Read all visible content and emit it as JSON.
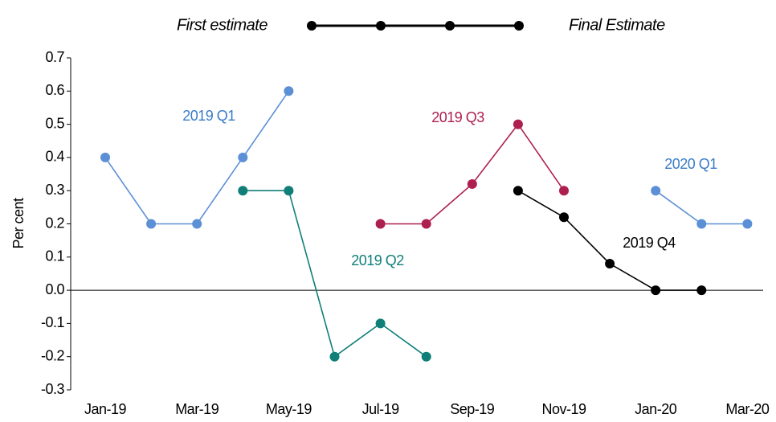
{
  "chart_data": {
    "type": "line",
    "legend": {
      "left_label": "First estimate",
      "right_label": "Final Estimate"
    },
    "ylabel": "Per cent",
    "categories": [
      "Jan-19",
      null,
      "Mar-19",
      null,
      "May-19",
      null,
      "Jul-19",
      null,
      "Sep-19",
      null,
      "Nov-19",
      null,
      "Jan-20",
      null,
      "Mar-20"
    ],
    "ylim": [
      -0.3,
      0.7
    ],
    "yticks": [
      0.7,
      0.6,
      0.5,
      0.4,
      0.3,
      0.2,
      0.1,
      {
        "value": 0,
        "label": "0.0"
      },
      -0.1,
      -0.2,
      -0.3
    ],
    "series": [
      {
        "name": "2019 Q1",
        "color": "#5b8fd6",
        "values": [
          0.4,
          0.2,
          0.2,
          0.4,
          0.6,
          null,
          null,
          null,
          null,
          null,
          null,
          null,
          null,
          null,
          null
        ]
      },
      {
        "name": "2019 Q2",
        "color": "#0f7f78",
        "values": [
          null,
          null,
          null,
          0.3,
          0.3,
          -0.2,
          -0.1,
          -0.2,
          null,
          null,
          null,
          null,
          null,
          null,
          null
        ]
      },
      {
        "name": "2019 Q3",
        "color": "#ad1f4e",
        "values": [
          null,
          null,
          null,
          null,
          null,
          null,
          0.2,
          0.2,
          0.32,
          0.5,
          0.3,
          null,
          null,
          null,
          null
        ]
      },
      {
        "name": "2019 Q4",
        "color": "#000000",
        "values": [
          null,
          null,
          null,
          null,
          null,
          null,
          null,
          null,
          null,
          0.3,
          0.22,
          0.08,
          0,
          0,
          null
        ]
      },
      {
        "name": "2020 Q1",
        "color": "#5b8fd6",
        "values": [
          null,
          null,
          null,
          null,
          null,
          null,
          null,
          null,
          null,
          null,
          null,
          null,
          0.3,
          0.2,
          0.2
        ]
      }
    ]
  }
}
